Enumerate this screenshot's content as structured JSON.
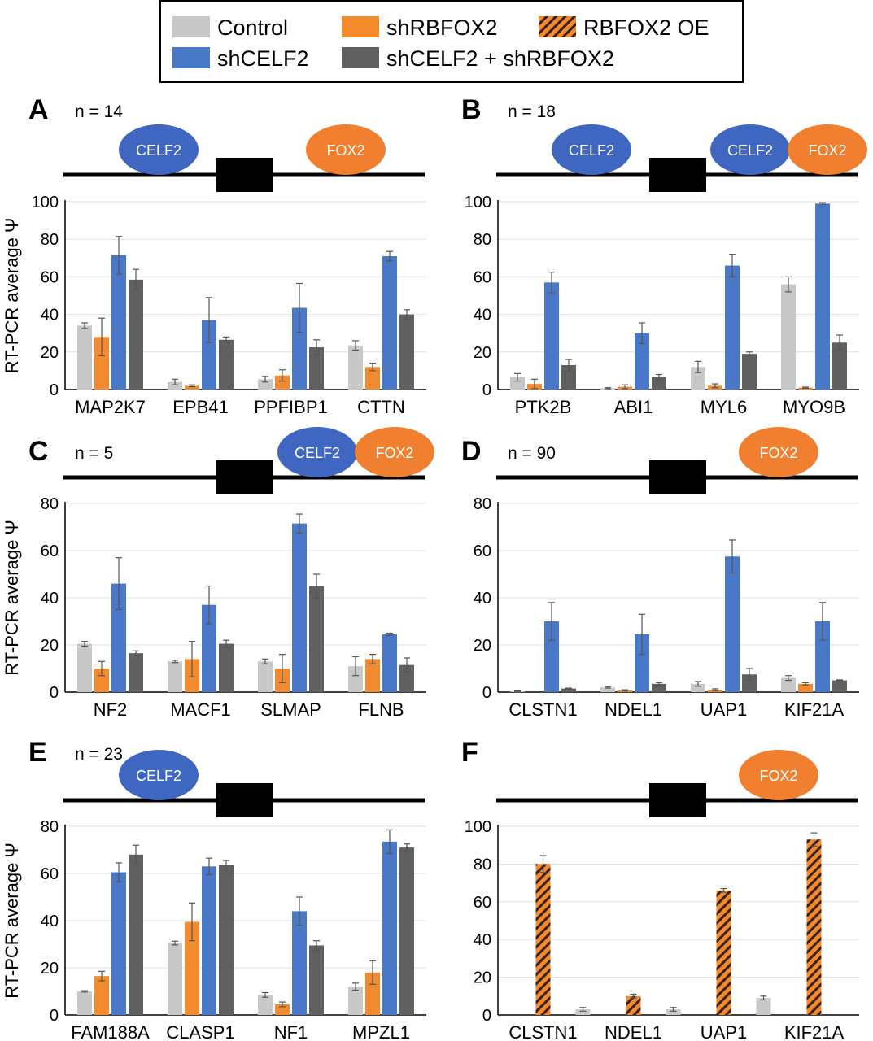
{
  "colors": {
    "Control": "#c8c8c8",
    "shRBFOX2": "#f28a30",
    "RBFOX2 OE": "#f28a30",
    "shCELF2": "#4a78c8",
    "shCELF2 + shRBFOX2": "#606060",
    "celf2_oval": "#3f67c2",
    "fox2_oval": "#f08030"
  },
  "legend": [
    {
      "name": "Control",
      "key": "Control",
      "hatch": false
    },
    {
      "name": "shRBFOX2",
      "key": "shRBFOX2",
      "hatch": false
    },
    {
      "name": "RBFOX2 OE",
      "key": "RBFOX2 OE",
      "hatch": true
    },
    {
      "name": "shCELF2",
      "key": "shCELF2",
      "hatch": false
    },
    {
      "name": "shCELF2 + shRBFOX2",
      "key": "shCELF2 + shRBFOX2",
      "hatch": false
    }
  ],
  "chart_data": [
    {
      "panel": "A",
      "n_label": "n = 14",
      "type": "bar",
      "ylabel": "RT-PCR average Ψ",
      "ylim": [
        0,
        100
      ],
      "yticks": [
        0,
        20,
        40,
        60,
        80,
        100
      ],
      "grid": true,
      "diagram": [
        {
          "label": "CELF2",
          "side": "upstream"
        },
        {
          "label": "FOX2",
          "side": "downstream"
        }
      ],
      "categories": [
        "MAP2K7",
        "EPB41",
        "PPFIBP1",
        "CTTN"
      ],
      "series": [
        {
          "name": "Control",
          "values": [
            34,
            4,
            5.5,
            23.5
          ],
          "errors": [
            1.5,
            1.5,
            1.5,
            2.5
          ]
        },
        {
          "name": "shRBFOX2",
          "values": [
            28,
            2,
            7.5,
            12
          ],
          "errors": [
            10,
            0.5,
            3,
            2
          ]
        },
        {
          "name": "shCELF2",
          "values": [
            71.5,
            37,
            43.5,
            71
          ],
          "errors": [
            10,
            12,
            13,
            2.5
          ]
        },
        {
          "name": "shCELF2 + shRBFOX2",
          "values": [
            58.5,
            26.5,
            22.5,
            40
          ],
          "errors": [
            5.5,
            1.5,
            4,
            2.5
          ]
        }
      ]
    },
    {
      "panel": "B",
      "n_label": "n = 18",
      "type": "bar",
      "ylabel": "",
      "ylim": [
        0,
        100
      ],
      "yticks": [
        0,
        20,
        40,
        60,
        80,
        100
      ],
      "grid": true,
      "diagram": [
        {
          "label": "CELF2",
          "side": "upstream"
        },
        {
          "label": "CELF2",
          "side": "downstream-near"
        },
        {
          "label": "FOX2",
          "side": "downstream-far"
        }
      ],
      "categories": [
        "PTK2B",
        "ABI1",
        "MYL6",
        "MYO9B"
      ],
      "series": [
        {
          "name": "Control",
          "values": [
            6.5,
            0.7,
            12,
            56
          ],
          "errors": [
            2,
            0.3,
            3,
            4
          ]
        },
        {
          "name": "shRBFOX2",
          "values": [
            3,
            1.5,
            2,
            1
          ],
          "errors": [
            2.5,
            1,
            1,
            0.3
          ]
        },
        {
          "name": "shCELF2",
          "values": [
            57,
            30,
            66,
            99
          ],
          "errors": [
            5.5,
            5.5,
            6,
            0.5
          ]
        },
        {
          "name": "shCELF2 + shRBFOX2",
          "values": [
            13,
            6.5,
            19,
            25
          ],
          "errors": [
            3,
            1.5,
            1,
            4
          ]
        }
      ]
    },
    {
      "panel": "C",
      "n_label": "n = 5",
      "type": "bar",
      "ylabel": "RT-PCR average Ψ",
      "ylim": [
        0,
        80
      ],
      "yticks": [
        0,
        20,
        40,
        60,
        80
      ],
      "grid": true,
      "diagram": [
        {
          "label": "CELF2",
          "side": "downstream-near"
        },
        {
          "label": "FOX2",
          "side": "downstream-far"
        }
      ],
      "categories": [
        "NF2",
        "MACF1",
        "SLMAP",
        "FLNB"
      ],
      "series": [
        {
          "name": "Control",
          "values": [
            20.5,
            13,
            13,
            11
          ],
          "errors": [
            1,
            0.5,
            1,
            4
          ]
        },
        {
          "name": "shRBFOX2",
          "values": [
            10,
            14,
            10,
            14
          ],
          "errors": [
            3,
            7.5,
            6,
            2
          ]
        },
        {
          "name": "shCELF2",
          "values": [
            46,
            37,
            71.5,
            24.5
          ],
          "errors": [
            11,
            8,
            4,
            0.5
          ]
        },
        {
          "name": "shCELF2 + shRBFOX2",
          "values": [
            16.5,
            20.5,
            45,
            11.5
          ],
          "errors": [
            1,
            1.5,
            5,
            3
          ]
        }
      ]
    },
    {
      "panel": "D",
      "n_label": "n = 90",
      "type": "bar",
      "ylabel": "",
      "ylim": [
        0,
        80
      ],
      "yticks": [
        0,
        20,
        40,
        60,
        80
      ],
      "grid": true,
      "diagram": [
        {
          "label": "FOX2",
          "side": "downstream"
        }
      ],
      "categories": [
        "CLSTN1",
        "NDEL1",
        "UAP1",
        "KIF21A"
      ],
      "series": [
        {
          "name": "Control",
          "values": [
            0.3,
            2,
            3.5,
            6
          ],
          "errors": [
            0.2,
            0.3,
            1,
            1
          ]
        },
        {
          "name": "shRBFOX2",
          "values": [
            0,
            0.7,
            1,
            3.5
          ],
          "errors": [
            0,
            0.3,
            0.4,
            0.5
          ]
        },
        {
          "name": "shCELF2",
          "values": [
            30,
            24.5,
            57.5,
            30
          ],
          "errors": [
            8,
            8.5,
            7,
            8
          ]
        },
        {
          "name": "shCELF2 + shRBFOX2",
          "values": [
            1.5,
            3.5,
            7.5,
            5
          ],
          "errors": [
            0.2,
            0.5,
            2.5,
            0.2
          ]
        }
      ]
    },
    {
      "panel": "E",
      "n_label": "n = 23",
      "type": "bar",
      "ylabel": "RT-PCR average Ψ",
      "ylim": [
        0,
        80
      ],
      "yticks": [
        0,
        20,
        40,
        60,
        80
      ],
      "grid": true,
      "diagram": [
        {
          "label": "CELF2",
          "side": "upstream"
        }
      ],
      "categories": [
        "FAM188A",
        "CLASP1",
        "NF1",
        "MPZL1"
      ],
      "series": [
        {
          "name": "Control",
          "values": [
            10,
            30.5,
            8.5,
            12
          ],
          "errors": [
            0.3,
            0.8,
            1,
            1.5
          ]
        },
        {
          "name": "shRBFOX2",
          "values": [
            16.5,
            39.5,
            4.5,
            18
          ],
          "errors": [
            2,
            8,
            1,
            5
          ]
        },
        {
          "name": "shCELF2",
          "values": [
            60.5,
            63,
            44,
            73.5
          ],
          "errors": [
            4,
            3.5,
            6,
            5
          ]
        },
        {
          "name": "shCELF2 + shRBFOX2",
          "values": [
            68,
            63.5,
            29.5,
            71
          ],
          "errors": [
            4,
            2,
            2,
            1.5
          ]
        }
      ]
    },
    {
      "panel": "F",
      "n_label": "",
      "type": "bar",
      "ylabel": "",
      "ylim": [
        0,
        100
      ],
      "yticks": [
        0,
        20,
        40,
        60,
        80,
        100
      ],
      "grid": true,
      "diagram": [
        {
          "label": "FOX2",
          "side": "downstream"
        }
      ],
      "categories": [
        "CLSTN1",
        "NDEL1",
        "UAP1",
        "KIF21A"
      ],
      "series": [
        {
          "name": "Control",
          "values": [
            0,
            3,
            3,
            9
          ],
          "errors": [
            0,
            1,
            1,
            1
          ]
        },
        {
          "name": "RBFOX2 OE",
          "values": [
            80,
            10,
            66,
            93
          ],
          "errors": [
            4.5,
            1,
            1,
            3.5
          ]
        }
      ]
    }
  ]
}
